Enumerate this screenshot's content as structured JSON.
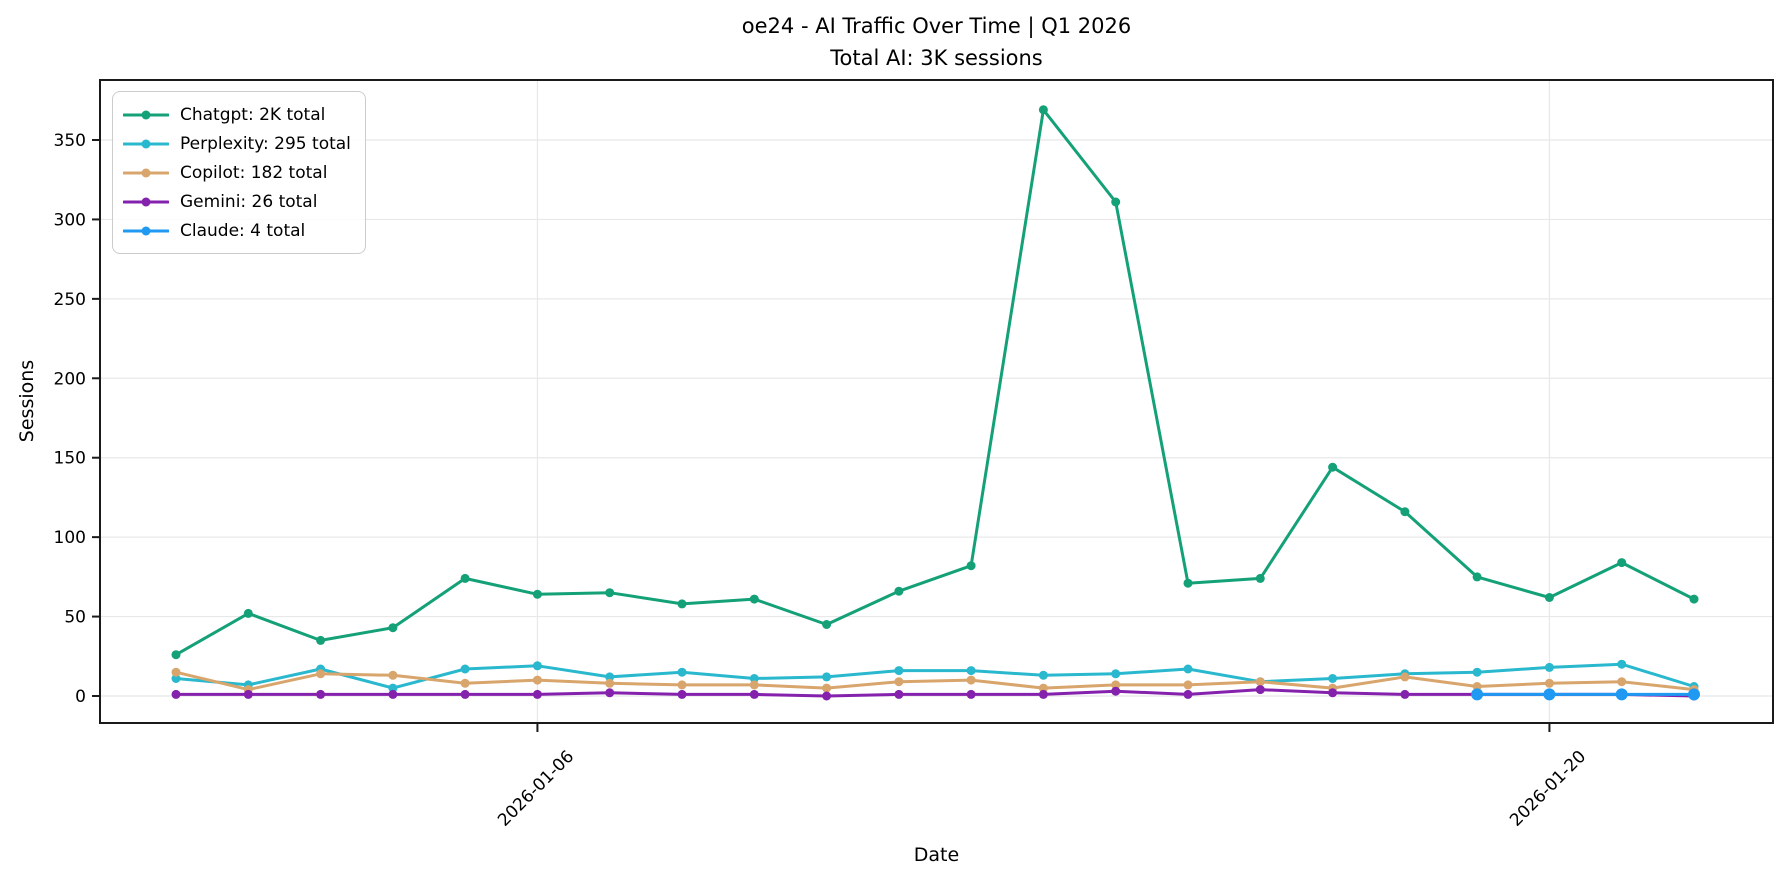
{
  "chart_data": {
    "type": "line",
    "title": "oe24 - AI Traffic Over Time | Q1 2026",
    "subtitle": "Total AI: 3K sessions",
    "xlabel": "Date",
    "ylabel": "Sessions",
    "x": [
      "2026-01-01",
      "2026-01-02",
      "2026-01-03",
      "2026-01-04",
      "2026-01-05",
      "2026-01-06",
      "2026-01-07",
      "2026-01-08",
      "2026-01-09",
      "2026-01-10",
      "2026-01-11",
      "2026-01-12",
      "2026-01-13",
      "2026-01-14",
      "2026-01-15",
      "2026-01-16",
      "2026-01-17",
      "2026-01-18",
      "2026-01-19",
      "2026-01-20",
      "2026-01-21",
      "2026-01-22"
    ],
    "series": [
      {
        "name": "chatgpt",
        "legend_label": "Chatgpt: 2K total",
        "color": "#14a178",
        "marker_radius": 4.5,
        "values": [
          26,
          52,
          35,
          43,
          74,
          64,
          65,
          58,
          61,
          45,
          66,
          82,
          369,
          311,
          71,
          74,
          144,
          116,
          75,
          62,
          84,
          61
        ]
      },
      {
        "name": "perplexity",
        "legend_label": "Perplexity: 295 total",
        "color": "#29b8ce",
        "marker_radius": 4.5,
        "values": [
          11,
          7,
          17,
          5,
          17,
          19,
          12,
          15,
          11,
          12,
          16,
          16,
          13,
          14,
          17,
          9,
          11,
          14,
          15,
          18,
          20,
          6
        ]
      },
      {
        "name": "copilot",
        "legend_label": "Copilot: 182 total",
        "color": "#d8a56c",
        "marker_radius": 4.5,
        "values": [
          15,
          4,
          14,
          13,
          8,
          10,
          8,
          7,
          7,
          5,
          9,
          10,
          5,
          7,
          7,
          9,
          5,
          12,
          6,
          8,
          9,
          4
        ]
      },
      {
        "name": "gemini",
        "legend_label": "Gemini: 26 total",
        "color": "#8522ad",
        "marker_radius": 4.5,
        "values": [
          1,
          1,
          1,
          1,
          1,
          1,
          2,
          1,
          1,
          0,
          1,
          1,
          1,
          3,
          1,
          4,
          2,
          1,
          1,
          1,
          1,
          0
        ]
      },
      {
        "name": "claude",
        "legend_label": "Claude: 4 total",
        "color": "#1f99f2",
        "marker_radius": 6,
        "values": [
          null,
          null,
          null,
          null,
          null,
          null,
          null,
          null,
          null,
          null,
          null,
          null,
          null,
          null,
          null,
          null,
          null,
          null,
          1,
          1,
          1,
          1
        ]
      }
    ],
    "yticks": [
      0,
      50,
      100,
      150,
      200,
      250,
      300,
      350
    ],
    "xtick_indices": [
      5,
      19
    ],
    "xtick_labels": [
      "2026-01-06",
      "2026-01-20"
    ],
    "ylim": [
      -17,
      389
    ],
    "grid": true,
    "legend_position": "upper left",
    "background_color": "#ffffff",
    "grid_color": "#e8e8e8",
    "spine_color": "#1a1a1a"
  }
}
